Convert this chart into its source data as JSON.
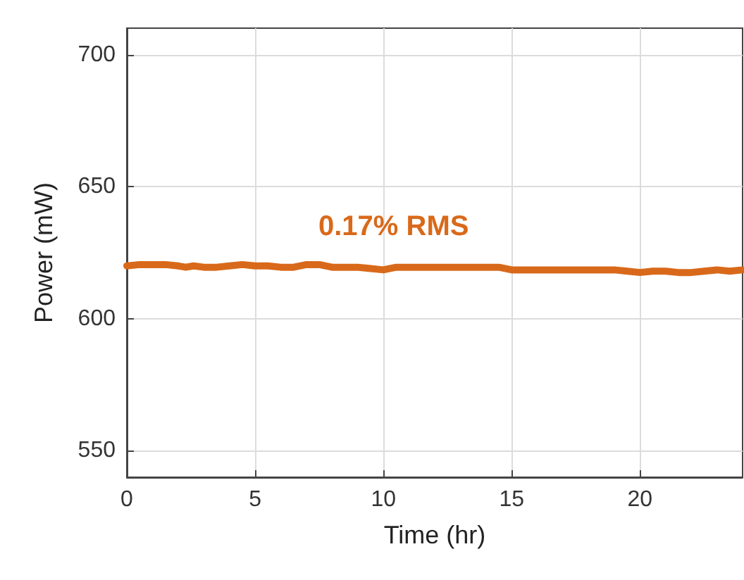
{
  "chart_data": {
    "type": "line",
    "xlabel": "Time (hr)",
    "ylabel": "Power (mW)",
    "annotations": [
      "0.17% RMS"
    ],
    "x": [
      0,
      0.5,
      1,
      1.5,
      2,
      2.3,
      2.6,
      3,
      3.5,
      4,
      4.5,
      5,
      5.5,
      6,
      6.5,
      7,
      7.5,
      8,
      8.5,
      9,
      9.5,
      10,
      10.5,
      11,
      11.5,
      12,
      12.5,
      13,
      13.5,
      14,
      14.5,
      15,
      15.5,
      16,
      16.5,
      17,
      17.5,
      18,
      18.5,
      19,
      19.5,
      20,
      20.5,
      21,
      21.5,
      22,
      22.5,
      23,
      23.5,
      24
    ],
    "series": [
      {
        "color": "#d9691a",
        "values": [
          620,
          620.5,
          620.5,
          620.5,
          620,
          619.5,
          620,
          619.5,
          619.5,
          620,
          620.5,
          620,
          620,
          619.5,
          619.5,
          620.5,
          620.5,
          619.5,
          619.5,
          619.5,
          619,
          618.5,
          619.5,
          619.5,
          619.5,
          619.5,
          619.5,
          619.5,
          619.5,
          619.5,
          619.5,
          618.5,
          618.5,
          618.5,
          618.5,
          618.5,
          618.5,
          618.5,
          618.5,
          618.5,
          618,
          617.5,
          618,
          618,
          617.5,
          617.5,
          618,
          618.5,
          618,
          618.5
        ]
      }
    ],
    "xlim": [
      0,
      24
    ],
    "ylim": [
      540,
      710
    ],
    "xticks": [
      0,
      5,
      10,
      15,
      20
    ],
    "yticks": [
      550,
      600,
      650,
      700
    ],
    "grid": true,
    "marker": "none",
    "line_style": "solid"
  }
}
